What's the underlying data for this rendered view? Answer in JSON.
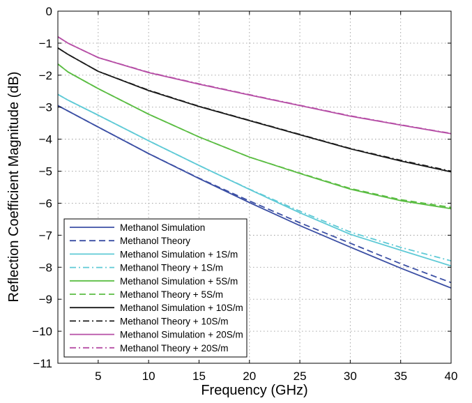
{
  "chart_data": {
    "type": "line",
    "xlabel": "Frequency (GHz)",
    "ylabel": "Reflection Coefficient Magnitude (dB)",
    "xlim": [
      1,
      40
    ],
    "ylim": [
      -11,
      0
    ],
    "xticks": [
      5,
      10,
      15,
      20,
      25,
      30,
      35,
      40
    ],
    "yticks": [
      0,
      -1,
      -2,
      -3,
      -4,
      -5,
      -6,
      -7,
      -8,
      -9,
      -10,
      -11
    ],
    "xtick_labels": [
      "5",
      "10",
      "15",
      "20",
      "25",
      "30",
      "35",
      "40"
    ],
    "ytick_labels": [
      "0",
      "−1",
      "−2",
      "−3",
      "−4",
      "−5",
      "−6",
      "−7",
      "−8",
      "−9",
      "−10",
      "−11"
    ],
    "grid": true,
    "legend_position": "bottom-left",
    "x": [
      1,
      2,
      5,
      10,
      15,
      20,
      25,
      30,
      35,
      40
    ],
    "series": [
      {
        "name": "Methanol Simulation",
        "color": "#3b4fa4",
        "style": "solid",
        "values": [
          -2.95,
          -3.12,
          -3.62,
          -4.45,
          -5.23,
          -5.98,
          -6.7,
          -7.37,
          -8.03,
          -8.65
        ]
      },
      {
        "name": "Methanol Theory",
        "color": "#3b4fa4",
        "style": "dashed",
        "values": [
          -2.95,
          -3.12,
          -3.62,
          -4.45,
          -5.22,
          -5.93,
          -6.61,
          -7.25,
          -7.89,
          -8.48
        ]
      },
      {
        "name": "Methanol Simulation + 1S/m",
        "color": "#5fcad6",
        "style": "solid",
        "values": [
          -2.6,
          -2.78,
          -3.25,
          -4.05,
          -4.82,
          -5.57,
          -6.3,
          -6.97,
          -7.47,
          -7.96
        ]
      },
      {
        "name": "Methanol Theory + 1S/m",
        "color": "#5fcad6",
        "style": "dashdot",
        "values": [
          -2.6,
          -2.78,
          -3.25,
          -4.05,
          -4.82,
          -5.56,
          -6.25,
          -6.9,
          -7.38,
          -7.8
        ]
      },
      {
        "name": "Methanol Simulation + 5S/m",
        "color": "#5bbd43",
        "style": "solid",
        "values": [
          -1.65,
          -1.9,
          -2.42,
          -3.22,
          -3.93,
          -4.56,
          -5.07,
          -5.56,
          -5.92,
          -6.17
        ]
      },
      {
        "name": "Methanol Theory + 5S/m",
        "color": "#5bbd43",
        "style": "dashed",
        "values": [
          -1.65,
          -1.9,
          -2.42,
          -3.22,
          -3.93,
          -4.56,
          -5.06,
          -5.54,
          -5.89,
          -6.13
        ]
      },
      {
        "name": "Methanol Simulation + 10S/m",
        "color": "#1a1a1a",
        "style": "solid",
        "values": [
          -1.15,
          -1.35,
          -1.88,
          -2.48,
          -2.98,
          -3.42,
          -3.86,
          -4.3,
          -4.68,
          -5.02
        ]
      },
      {
        "name": "Methanol Theory + 10S/m",
        "color": "#1a1a1a",
        "style": "dashdot",
        "values": [
          -1.15,
          -1.35,
          -1.88,
          -2.47,
          -2.97,
          -3.41,
          -3.85,
          -4.29,
          -4.66,
          -5.0
        ]
      },
      {
        "name": "Methanol Simulation + 20S/m",
        "color": "#b64fa6",
        "style": "solid",
        "values": [
          -0.8,
          -1.0,
          -1.45,
          -1.92,
          -2.28,
          -2.62,
          -2.95,
          -3.28,
          -3.56,
          -3.83
        ]
      },
      {
        "name": "Methanol Theory + 20S/m",
        "color": "#b64fa6",
        "style": "dashdot",
        "values": [
          -0.8,
          -1.0,
          -1.45,
          -1.91,
          -2.27,
          -2.61,
          -2.94,
          -3.27,
          -3.55,
          -3.82
        ]
      }
    ]
  }
}
